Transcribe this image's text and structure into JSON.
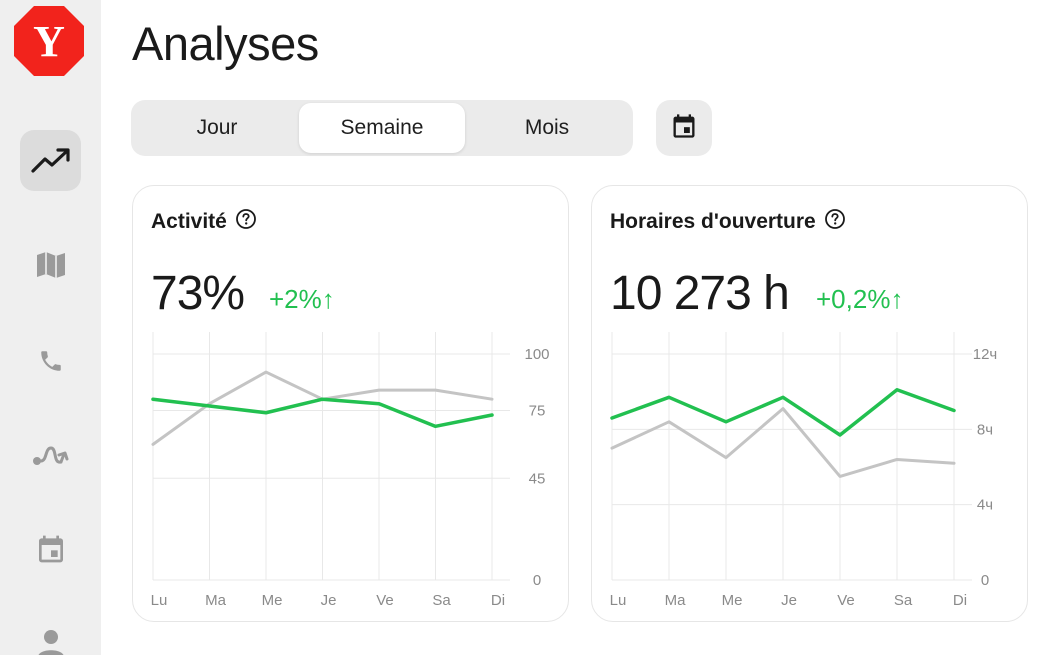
{
  "app": {
    "logo_letter": "Y",
    "brand_color": "#f2231c",
    "accent_green": "#22c050"
  },
  "page": {
    "title": "Analyses"
  },
  "sidebar": {
    "items": [
      {
        "icon": "trending-up-icon",
        "active": true
      },
      {
        "icon": "map-icon",
        "active": false
      },
      {
        "icon": "phone-icon",
        "active": false
      },
      {
        "icon": "route-icon",
        "active": false
      },
      {
        "icon": "calendar-icon",
        "active": false
      },
      {
        "icon": "user-icon",
        "active": false
      }
    ]
  },
  "period_tabs": {
    "items": [
      "Jour",
      "Semaine",
      "Mois"
    ],
    "selected": "Semaine"
  },
  "date_picker": {
    "icon": "calendar-icon"
  },
  "cards": {
    "activity": {
      "title": "Activité",
      "value": "73%",
      "delta": "+2%↑"
    },
    "hours": {
      "title": "Horaires d'ouverture",
      "value": "10 273 h",
      "delta": "+0,2%↑"
    }
  },
  "chart_data": [
    {
      "type": "line",
      "categories": [
        "Lu",
        "Ma",
        "Me",
        "Je",
        "Ve",
        "Sa",
        "Di"
      ],
      "y_ticks": [
        "0",
        "45",
        "75",
        "100"
      ],
      "y_tick_values": [
        0,
        45,
        75,
        100
      ],
      "ylim": [
        0,
        100
      ],
      "grid": true,
      "series": [
        {
          "color": "#c4c4c4",
          "values": [
            60,
            78,
            92,
            80,
            84,
            84,
            80
          ]
        },
        {
          "color": "#22c050",
          "values": [
            80,
            77,
            74,
            80,
            78,
            68,
            73
          ]
        }
      ]
    },
    {
      "type": "line",
      "categories": [
        "Lu",
        "Ma",
        "Me",
        "Je",
        "Ve",
        "Sa",
        "Di"
      ],
      "y_ticks": [
        "0",
        "4ч",
        "8ч",
        "12ч"
      ],
      "y_tick_values": [
        0,
        4,
        8,
        12
      ],
      "ylim": [
        0,
        12
      ],
      "grid": true,
      "series": [
        {
          "color": "#c4c4c4",
          "values": [
            7.0,
            8.4,
            6.5,
            9.1,
            5.5,
            6.4,
            6.2
          ]
        },
        {
          "color": "#22c050",
          "values": [
            8.6,
            9.7,
            8.4,
            9.7,
            7.7,
            10.1,
            9.0
          ]
        }
      ]
    }
  ]
}
